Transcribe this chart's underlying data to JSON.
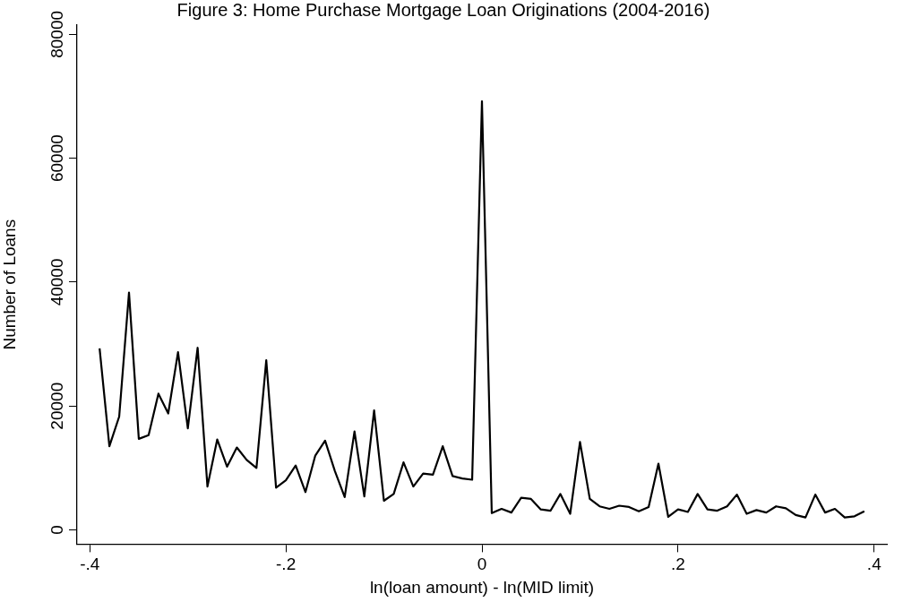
{
  "chart_data": {
    "type": "line",
    "title": "Figure 3: Home Purchase Mortgage Loan Originations (2004-2016)",
    "xlabel": "ln(loan amount) - ln(MID limit)",
    "ylabel": "Number of Loans",
    "x": [
      -0.39,
      -0.38,
      -0.37,
      -0.36,
      -0.35,
      -0.34,
      -0.33,
      -0.32,
      -0.31,
      -0.3,
      -0.29,
      -0.28,
      -0.27,
      -0.26,
      -0.25,
      -0.24,
      -0.23,
      -0.22,
      -0.21,
      -0.2,
      -0.19,
      -0.18,
      -0.17,
      -0.16,
      -0.15,
      -0.14,
      -0.13,
      -0.12,
      -0.11,
      -0.1,
      -0.09,
      -0.08,
      -0.07,
      -0.06,
      -0.05,
      -0.04,
      -0.03,
      -0.02,
      -0.01,
      0,
      0.01,
      0.02,
      0.03,
      0.04,
      0.05,
      0.06,
      0.07,
      0.08,
      0.09,
      0.1,
      0.11,
      0.12,
      0.13,
      0.14,
      0.15,
      0.16,
      0.17,
      0.18,
      0.19,
      0.2,
      0.21,
      0.22,
      0.23,
      0.24,
      0.25,
      0.26,
      0.27,
      0.28,
      0.29,
      0.3,
      0.31,
      0.32,
      0.33,
      0.34,
      0.35,
      0.36,
      0.37,
      0.38,
      0.39
    ],
    "series": [
      {
        "color": "#000000",
        "values": [
          29300,
          13500,
          18300,
          38300,
          14700,
          15300,
          22000,
          18800,
          28700,
          16400,
          29400,
          7000,
          14600,
          10200,
          13300,
          11300,
          10000,
          27400,
          6800,
          8000,
          10400,
          6100,
          12000,
          14400,
          9500,
          5300,
          15900,
          5400,
          19300,
          4700,
          5800,
          10900,
          7000,
          9100,
          8900,
          13500,
          8700,
          8300,
          8100,
          69200,
          2700,
          3400,
          2800,
          5200,
          5000,
          3300,
          3100,
          5800,
          2600,
          14200,
          5000,
          3800,
          3400,
          3900,
          3700,
          3000,
          3700,
          10700,
          2100,
          3300,
          2900,
          5800,
          3300,
          3100,
          3800,
          5700,
          2600,
          3200,
          2800,
          3800,
          3500,
          2400,
          2000,
          5700,
          2800,
          3400,
          2000,
          2200,
          3000
        ]
      }
    ],
    "xlim": [
      -0.413,
      0.413
    ],
    "ylim": [
      -2300,
      81500
    ],
    "xticks": [
      {
        "value": -0.4,
        "label": "-.4"
      },
      {
        "value": -0.2,
        "label": "-.2"
      },
      0,
      {
        "value": 0.2,
        "label": ".2"
      },
      {
        "value": 0.4,
        "label": ".4"
      }
    ],
    "yticks": [
      0,
      20000,
      40000,
      60000,
      80000
    ],
    "grid": false,
    "legend": false,
    "marker": "none",
    "line_style": "solid"
  }
}
